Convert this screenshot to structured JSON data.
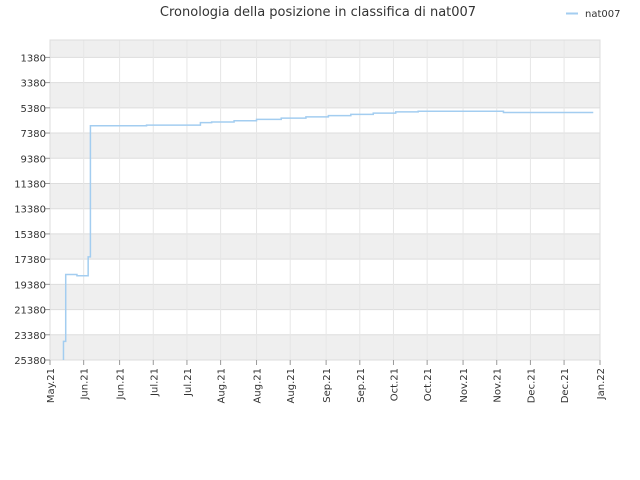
{
  "chart_data": {
    "type": "line",
    "title": "Cronologia della posizione in classifica di nat007",
    "xlabel": "",
    "ylabel": "",
    "y_inverted": true,
    "ylim": [
      25380,
      0
    ],
    "y_ticks": [
      1380,
      3380,
      5380,
      7380,
      9380,
      11380,
      13380,
      15380,
      17380,
      19380,
      21380,
      23380,
      25380
    ],
    "x_range": [
      "2021-05-01",
      "2022-01-01"
    ],
    "x_ticks": [
      {
        "label": "May.21",
        "date": "2021-05-01"
      },
      {
        "label": "Jun.21",
        "date": "2021-05-16"
      },
      {
        "label": "Jun.21",
        "date": "2021-06-01"
      },
      {
        "label": "Jul.21",
        "date": "2021-06-16"
      },
      {
        "label": "Jul.21",
        "date": "2021-07-01"
      },
      {
        "label": "Aug.21",
        "date": "2021-07-16"
      },
      {
        "label": "Aug.21",
        "date": "2021-08-01"
      },
      {
        "label": "Aug.21",
        "date": "2021-08-16"
      },
      {
        "label": "Sep.21",
        "date": "2021-09-01"
      },
      {
        "label": "Sep.21",
        "date": "2021-09-16"
      },
      {
        "label": "Oct.21",
        "date": "2021-10-01"
      },
      {
        "label": "Oct.21",
        "date": "2021-10-16"
      },
      {
        "label": "Nov.21",
        "date": "2021-11-01"
      },
      {
        "label": "Nov.21",
        "date": "2021-11-16"
      },
      {
        "label": "Dec.21",
        "date": "2021-12-01"
      },
      {
        "label": "Dec.21",
        "date": "2021-12-16"
      },
      {
        "label": "Jan.22",
        "date": "2022-01-01"
      }
    ],
    "grid": true,
    "legend_position": "top-right",
    "series": [
      {
        "name": "nat007",
        "color": "#a3cdf0",
        "points": [
          {
            "x": "2021-05-07",
            "y": 25380
          },
          {
            "x": "2021-05-07",
            "y": 24900
          },
          {
            "x": "2021-05-07",
            "y": 23900
          },
          {
            "x": "2021-05-08",
            "y": 23900
          },
          {
            "x": "2021-05-08",
            "y": 18600
          },
          {
            "x": "2021-05-13",
            "y": 18600
          },
          {
            "x": "2021-05-13",
            "y": 18700
          },
          {
            "x": "2021-05-18",
            "y": 18700
          },
          {
            "x": "2021-05-18",
            "y": 18000
          },
          {
            "x": "2021-05-18",
            "y": 17200
          },
          {
            "x": "2021-05-19",
            "y": 17200
          },
          {
            "x": "2021-05-19",
            "y": 6800
          },
          {
            "x": "2021-06-13",
            "y": 6800
          },
          {
            "x": "2021-06-13",
            "y": 6750
          },
          {
            "x": "2021-07-07",
            "y": 6750
          },
          {
            "x": "2021-07-07",
            "y": 6550
          },
          {
            "x": "2021-07-12",
            "y": 6550
          },
          {
            "x": "2021-07-12",
            "y": 6500
          },
          {
            "x": "2021-07-22",
            "y": 6500
          },
          {
            "x": "2021-07-22",
            "y": 6400
          },
          {
            "x": "2021-08-01",
            "y": 6400
          },
          {
            "x": "2021-08-01",
            "y": 6300
          },
          {
            "x": "2021-08-12",
            "y": 6300
          },
          {
            "x": "2021-08-12",
            "y": 6200
          },
          {
            "x": "2021-08-23",
            "y": 6200
          },
          {
            "x": "2021-08-23",
            "y": 6100
          },
          {
            "x": "2021-09-02",
            "y": 6100
          },
          {
            "x": "2021-09-02",
            "y": 6000
          },
          {
            "x": "2021-09-12",
            "y": 6000
          },
          {
            "x": "2021-09-12",
            "y": 5900
          },
          {
            "x": "2021-09-22",
            "y": 5900
          },
          {
            "x": "2021-09-22",
            "y": 5800
          },
          {
            "x": "2021-10-02",
            "y": 5800
          },
          {
            "x": "2021-10-02",
            "y": 5700
          },
          {
            "x": "2021-10-12",
            "y": 5700
          },
          {
            "x": "2021-10-12",
            "y": 5650
          },
          {
            "x": "2021-11-19",
            "y": 5650
          },
          {
            "x": "2021-11-19",
            "y": 5750
          },
          {
            "x": "2021-12-29",
            "y": 5750
          }
        ]
      }
    ]
  }
}
